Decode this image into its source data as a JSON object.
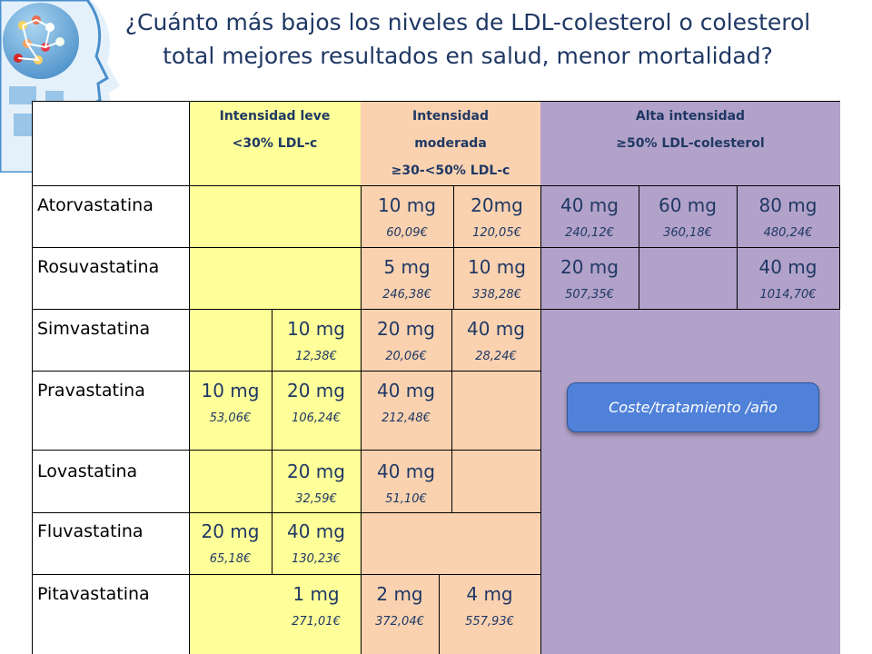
{
  "title": {
    "line1": "¿Cuánto más bajos los niveles de LDL-colesterol o colesterol",
    "line2": "total mejores resultados en salud, menor mortalidad?"
  },
  "headers": {
    "leve": [
      "Intensidad leve",
      "<30%  LDL-c"
    ],
    "moderada": [
      "Intensidad",
      "moderada",
      "≥30-<50% LDL-c"
    ],
    "alta": [
      "Alta intensidad",
      "≥50% LDL-colesterol"
    ]
  },
  "drugs": {
    "atorvastatina": {
      "name": "Atorvastatina",
      "d10": {
        "dose": "10 mg",
        "price": "60,09€"
      },
      "d20": {
        "dose": "20mg",
        "price": "120,05€"
      },
      "d40": {
        "dose": "40 mg",
        "price": "240,12€"
      },
      "d60": {
        "dose": "60 mg",
        "price": "360,18€"
      },
      "d80": {
        "dose": "80 mg",
        "price": "480,24€"
      }
    },
    "rosuvastatina": {
      "name": "Rosuvastatina",
      "d5": {
        "dose": "5 mg",
        "price": "246,38€"
      },
      "d10": {
        "dose": "10 mg",
        "price": "338,28€"
      },
      "d20": {
        "dose": "20 mg",
        "price": "507,35€"
      },
      "d40": {
        "dose": "40 mg",
        "price": "1014,70€"
      }
    },
    "simvastatina": {
      "name": "Simvastatina",
      "d10": {
        "dose": "10 mg",
        "price": "12,38€"
      },
      "d20": {
        "dose": "20 mg",
        "price": "20,06€"
      },
      "d40": {
        "dose": "40 mg",
        "price": "28,24€"
      }
    },
    "pravastatina": {
      "name": "Pravastatina",
      "d10": {
        "dose": "10 mg",
        "price": "53,06€"
      },
      "d20": {
        "dose": "20 mg",
        "price": "106,24€"
      },
      "d40": {
        "dose": "40 mg",
        "price": "212,48€"
      }
    },
    "lovastatina": {
      "name": "Lovastatina",
      "d20": {
        "dose": "20 mg",
        "price": "32,59€"
      },
      "d40": {
        "dose": "40 mg",
        "price": "51,10€"
      }
    },
    "fluvastatina": {
      "name": "Fluvastatina",
      "d20": {
        "dose": "20 mg",
        "price": "65,18€"
      },
      "d40": {
        "dose": "40 mg",
        "price": "130,23€"
      }
    },
    "pitavastatina": {
      "name": "Pitavastatina",
      "d1": {
        "dose": "1 mg",
        "price": "271,01€"
      },
      "d2": {
        "dose": "2 mg",
        "price": "372,04€"
      },
      "d4": {
        "dose": "4 mg",
        "price": "557,93€"
      }
    }
  },
  "callout": "Coste/tratamiento /año",
  "colors": {
    "leve": "#ffff99",
    "moderada": "#fad2b0",
    "alta": "#b2a2c9",
    "text": "#1f3864",
    "callout": "#4f81d9"
  },
  "icons": {
    "logo": "brain-head-icon"
  }
}
